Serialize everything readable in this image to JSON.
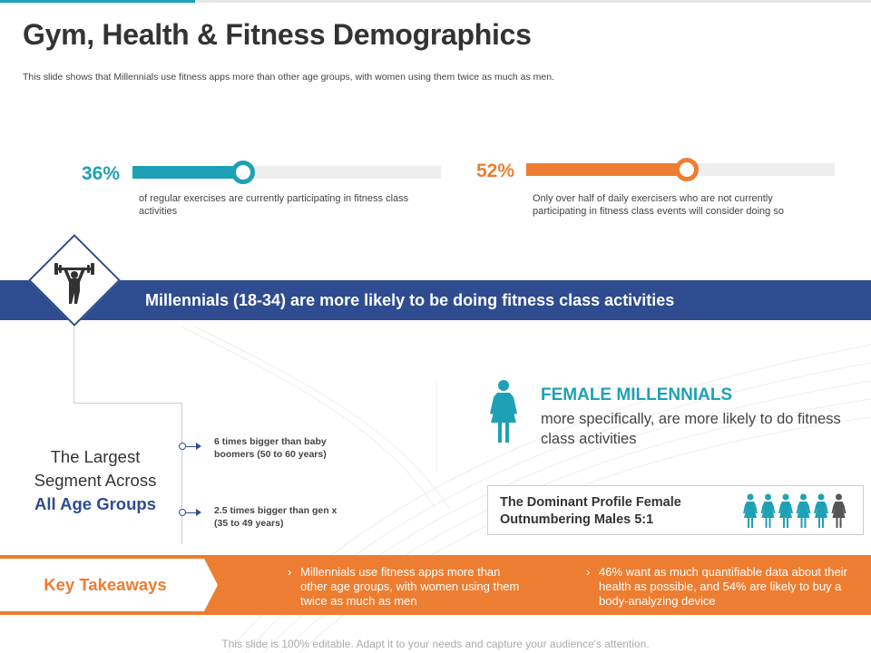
{
  "title": "Gym, Health & Fitness Demographics",
  "subtitle": "This slide shows that Millennials use fitness apps more than other age groups, with women using them twice as much as men.",
  "stats": [
    {
      "percent_label": "36%",
      "value": 0.36,
      "description": "of regular exercises are currently participating in fitness class activities",
      "color": "#1fa1b5"
    },
    {
      "percent_label": "52%",
      "value": 0.52,
      "description": "Only over half of daily exercisers who are not currently participating in fitness class events will consider doing so",
      "color": "#ed7d31"
    }
  ],
  "banner": {
    "text": "Millennials (18-34) are more likely to be doing fitness class activities",
    "icon": "weightlifter-icon",
    "color": "#2e4c8f"
  },
  "segment": {
    "line1": "The Largest",
    "line2": "Segment Across",
    "line3": "All Age Groups",
    "notes": [
      "6 times bigger than baby boomers (50 to 60 years)",
      "2.5 times bigger than gen x (35 to 49 years)"
    ]
  },
  "female": {
    "icon": "female-icon",
    "heading": "FEMALE MILLENNIALS",
    "text": "more specifically, are more likely to do fitness class activities"
  },
  "profile": {
    "text": "The Dominant Profile Female Outnumbering Males 5:1",
    "females": 5,
    "males": 1
  },
  "takeaways": {
    "label": "Key Takeaways",
    "chevron": "›",
    "items": [
      "Millennials use fitness apps more than other age groups, with women using them twice as much as men",
      "46% want as much quantifiable data about their health as possible, and 54% are likely to buy a body-analyzing device"
    ],
    "color": "#ed7d31"
  },
  "footer": "This slide is 100% editable. Adapt it to your needs and capture your audience's attention."
}
